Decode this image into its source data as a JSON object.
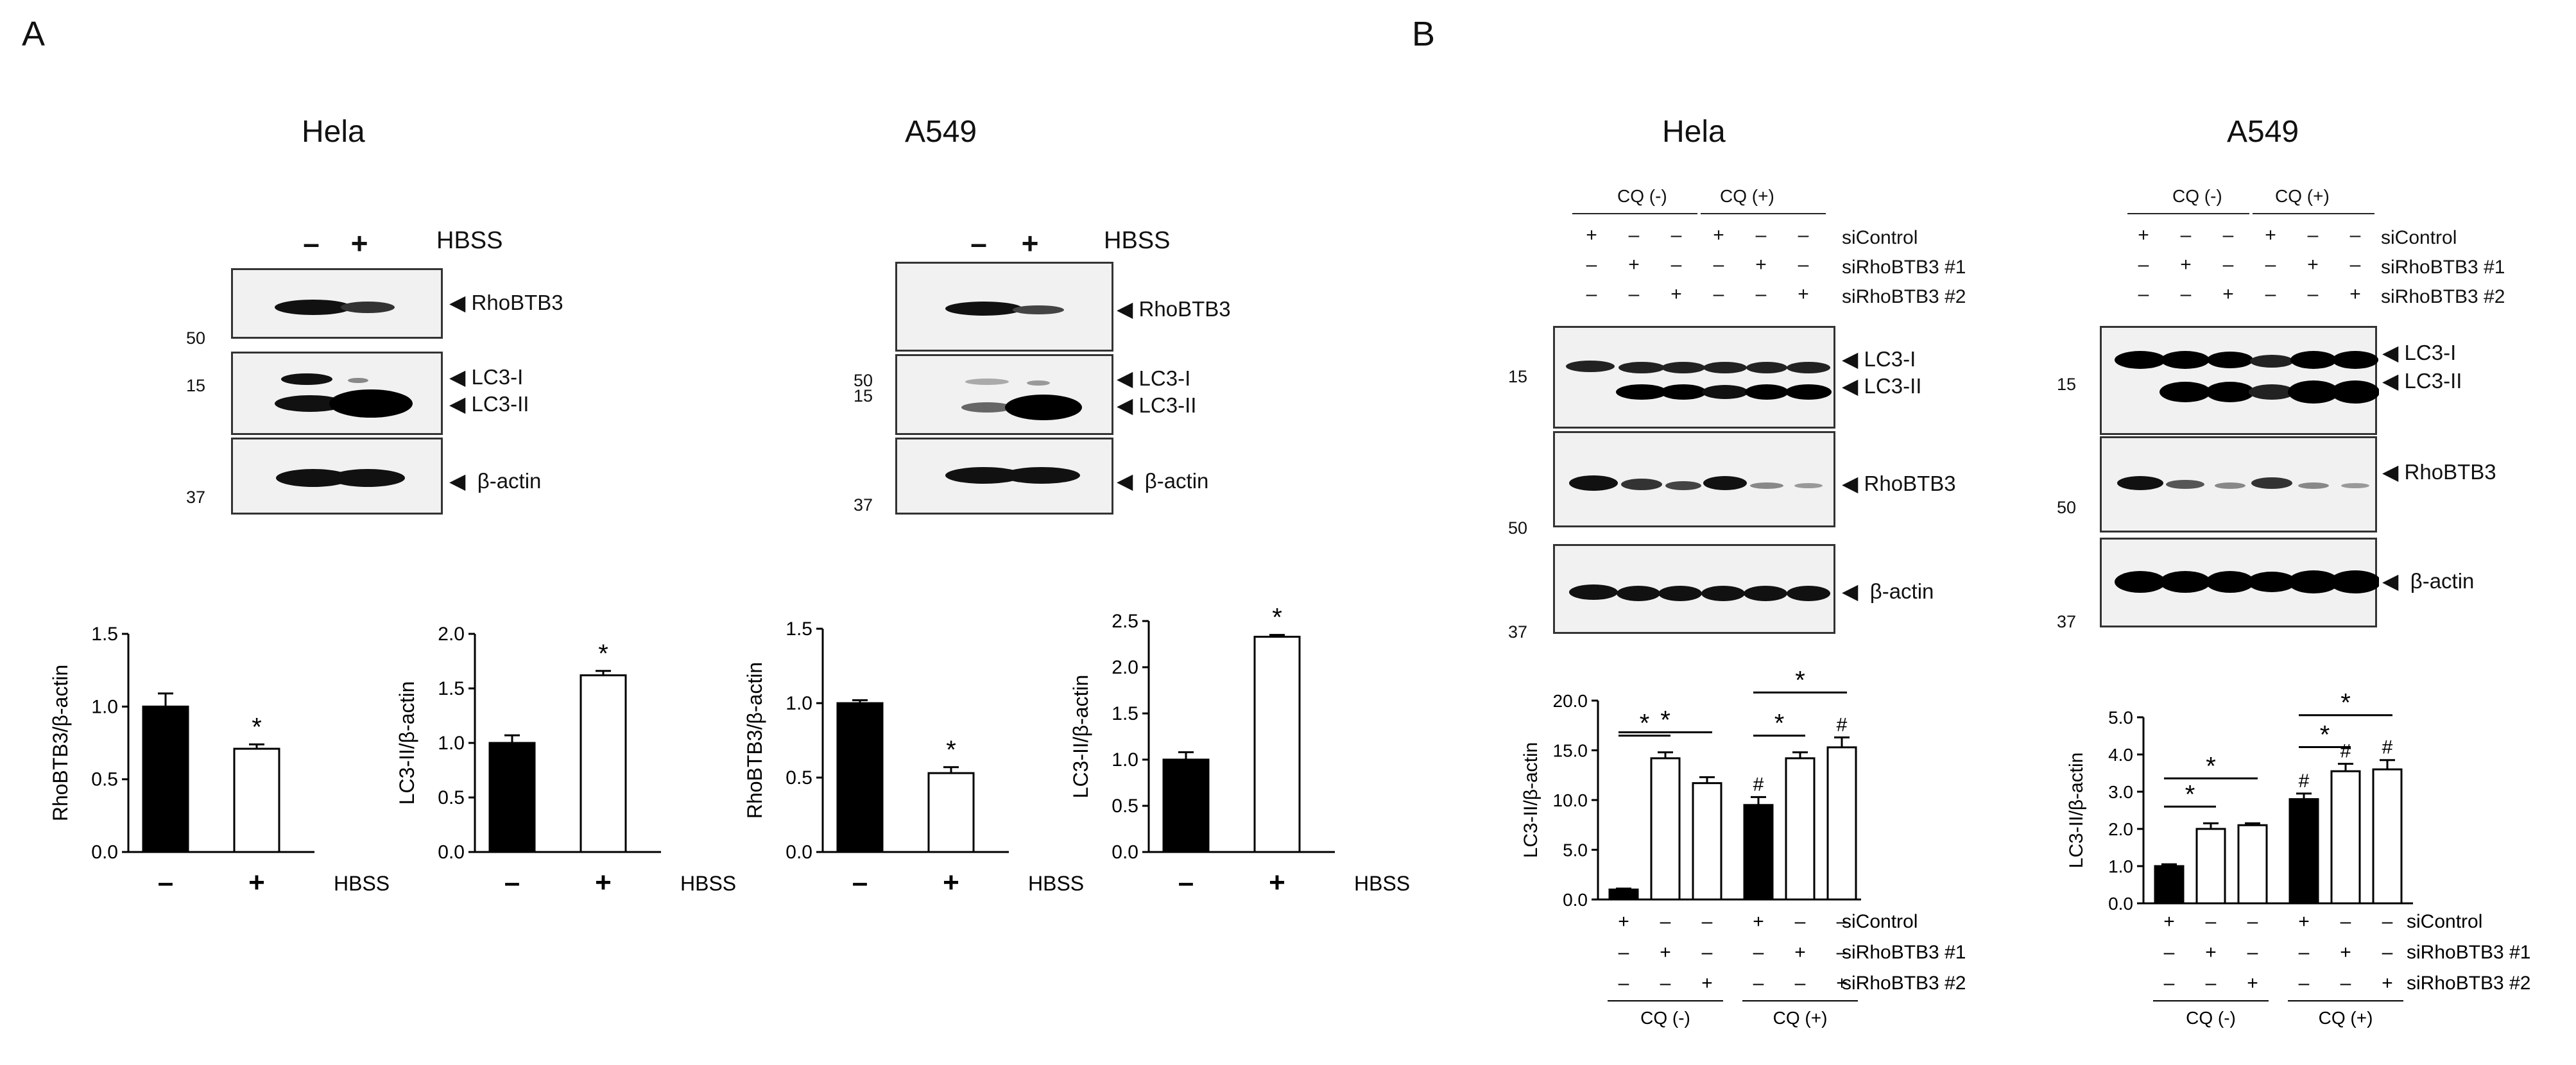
{
  "panels": {
    "A": {
      "letter": "A",
      "hela_title": "Hela",
      "a549_title": "A549"
    },
    "B": {
      "letter": "B",
      "hela_title": "Hela",
      "a549_title": "A549"
    }
  },
  "blots_A": {
    "hbss": "HBSS",
    "minus": "–",
    "plus": "+",
    "rhobtb3": "RhoBTB3",
    "lc3i": "LC3-I",
    "lc3ii": "LC3-II",
    "bactin": "β-actin",
    "mw_50": "50",
    "mw_15": "15",
    "mw_37": "37"
  },
  "blots_B": {
    "cq_minus": "CQ (-)",
    "cq_plus": "CQ (+)",
    "sicontrol": "siControl",
    "si1": "siRhoBTB3 #1",
    "si2": "siRhoBTB3 #2",
    "lc3i": "LC3-I",
    "lc3ii": "LC3-II",
    "rhobtb3": "RhoBTB3",
    "bactin": "β-actin",
    "mw_15": "15",
    "mw_50": "50",
    "mw_37": "37",
    "rows": {
      "sicontrol": [
        "+",
        "–",
        "–",
        "+",
        "–",
        "–"
      ],
      "si1": [
        "–",
        "+",
        "–",
        "–",
        "+",
        "–"
      ],
      "si2": [
        "–",
        "–",
        "+",
        "–",
        "–",
        "+"
      ]
    }
  },
  "chart_data": [
    {
      "id": "A_hela_rhobtb3",
      "type": "bar",
      "ylabel": "RhoBTB3/β-actin",
      "ylim": [
        0,
        1.5
      ],
      "yticks": [
        "0.0",
        "0.5",
        "1.0",
        "1.5"
      ],
      "categories": [
        "–",
        "+"
      ],
      "values": [
        1.0,
        0.71
      ],
      "errors": [
        0.09,
        0.03
      ],
      "fills": [
        "#000",
        "#fff"
      ],
      "xlabel": "HBSS",
      "stars": [
        "",
        "*"
      ]
    },
    {
      "id": "A_hela_lc3",
      "type": "bar",
      "ylabel": "LC3-II/β-actin",
      "ylim": [
        0,
        2.0
      ],
      "yticks": [
        "0.0",
        "0.5",
        "1.0",
        "1.5",
        "2.0"
      ],
      "categories": [
        "–",
        "+"
      ],
      "values": [
        1.0,
        1.62
      ],
      "errors": [
        0.07,
        0.04
      ],
      "fills": [
        "#000",
        "#fff"
      ],
      "xlabel": "HBSS",
      "stars": [
        "",
        "*"
      ]
    },
    {
      "id": "A_a549_rhobtb3",
      "type": "bar",
      "ylabel": "RhoBTB3/β-actin",
      "ylim": [
        0,
        1.5
      ],
      "yticks": [
        "0.0",
        "0.5",
        "1.0",
        "1.5"
      ],
      "categories": [
        "–",
        "+"
      ],
      "values": [
        1.0,
        0.53
      ],
      "errors": [
        0.02,
        0.04
      ],
      "fills": [
        "#000",
        "#fff"
      ],
      "xlabel": "HBSS",
      "stars": [
        "",
        "*"
      ]
    },
    {
      "id": "A_a549_lc3",
      "type": "bar",
      "ylabel": "LC3-II/β-actin",
      "ylim": [
        0,
        2.5
      ],
      "yticks": [
        "0.0",
        "0.5",
        "1.0",
        "1.5",
        "2.0",
        "2.5"
      ],
      "categories": [
        "–",
        "+"
      ],
      "values": [
        1.0,
        2.33
      ],
      "errors": [
        0.08,
        0.02
      ],
      "fills": [
        "#000",
        "#fff"
      ],
      "xlabel": "HBSS",
      "stars": [
        "",
        "*"
      ]
    },
    {
      "id": "B_hela_lc3",
      "type": "bar",
      "ylabel": "LC3-II/β-actin",
      "ylim": [
        0,
        20
      ],
      "yticks": [
        "0.0",
        "5.0",
        "10.0",
        "15.0",
        "20.0"
      ],
      "values": [
        1.0,
        14.2,
        11.7,
        9.5,
        14.2,
        15.3
      ],
      "errors": [
        0.1,
        0.6,
        0.6,
        0.8,
        0.6,
        1.0
      ],
      "fills": [
        "#000",
        "#fff",
        "#fff",
        "#000",
        "#fff",
        "#fff"
      ],
      "hash": [
        "",
        "",
        "",
        "#",
        "",
        "#"
      ],
      "brackets": [
        [
          0,
          1,
          "*"
        ],
        [
          0,
          2,
          "*"
        ],
        [
          3,
          4,
          "*"
        ],
        [
          3,
          5,
          "*"
        ]
      ],
      "rows": {
        "labels": [
          "siControl",
          "siRhoBTB3 #1",
          "siRhoBTB3 #2"
        ],
        "signs": [
          [
            "+",
            "–",
            "–",
            "+",
            "–",
            "–"
          ],
          [
            "–",
            "+",
            "–",
            "–",
            "+",
            "–"
          ],
          [
            "–",
            "–",
            "+",
            "–",
            "–",
            "+"
          ]
        ]
      },
      "groups": [
        "CQ (-)",
        "CQ (+)"
      ]
    },
    {
      "id": "B_a549_lc3",
      "type": "bar",
      "ylabel": "LC3-II/β-actin",
      "ylim": [
        0,
        5
      ],
      "yticks": [
        "0.0",
        "1.0",
        "2.0",
        "3.0",
        "4.0",
        "5.0"
      ],
      "values": [
        1.0,
        2.0,
        2.1,
        2.8,
        3.55,
        3.6
      ],
      "errors": [
        0.05,
        0.15,
        0.05,
        0.15,
        0.2,
        0.25
      ],
      "fills": [
        "#000",
        "#fff",
        "#fff",
        "#000",
        "#fff",
        "#fff"
      ],
      "hash": [
        "",
        "",
        "",
        "#",
        "#",
        "#"
      ],
      "brackets": [
        [
          0,
          1,
          "*"
        ],
        [
          0,
          2,
          "*"
        ],
        [
          3,
          4,
          "*"
        ],
        [
          3,
          5,
          "*"
        ]
      ],
      "rows": {
        "labels": [
          "siControl",
          "siRhoBTB3 #1",
          "siRhoBTB3 #2"
        ],
        "signs": [
          [
            "+",
            "–",
            "–",
            "+",
            "–",
            "–"
          ],
          [
            "–",
            "+",
            "–",
            "–",
            "+",
            "–"
          ],
          [
            "–",
            "–",
            "+",
            "–",
            "–",
            "+"
          ]
        ]
      },
      "groups": [
        "CQ (-)",
        "CQ (+)"
      ]
    }
  ]
}
